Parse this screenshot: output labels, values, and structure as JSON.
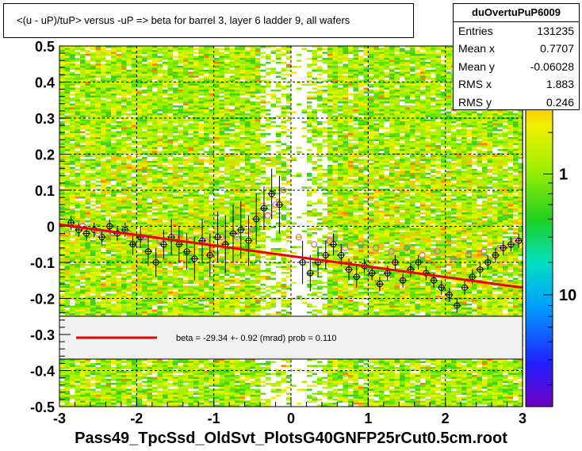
{
  "title": "<(u - uP)/tuP> versus  -uP => beta for barrel 3, layer 6 ladder 9, all wafers",
  "stats": {
    "name": "duOvertuPuP6009",
    "rows": [
      {
        "key": "Entries",
        "value": "131235"
      },
      {
        "key": "Mean x",
        "value": "0.7707"
      },
      {
        "key": "Mean y",
        "value": "-0.06028"
      },
      {
        "key": "RMS x",
        "value": "1.883"
      },
      {
        "key": "RMS y",
        "value": "0.246"
      }
    ]
  },
  "x_axis_title": "Pass49_TpcSsd_OldSvt_PlotsG40GNFP25rCut0.5cm.root",
  "fit_legend": "beta =  -29.34 +-  0.92 (mrad) prob = 0.110",
  "colors": {
    "fit_line": "#ee0000",
    "profile_black": "#000000",
    "profile_magenta": "#dd44dd",
    "legend_fill": "#f0f0f0"
  },
  "chart_data": {
    "type": "heatmap",
    "xlim": [
      -3,
      3
    ],
    "ylim": [
      -0.5,
      0.5
    ],
    "x_ticks": [
      -3,
      -2,
      -1,
      0,
      1,
      2,
      3
    ],
    "y_ticks": [
      -0.5,
      -0.4,
      -0.3,
      -0.2,
      -0.1,
      0,
      0.1,
      0.2,
      0.3,
      0.4,
      0.5
    ],
    "y_tick_labels": [
      "-0.5",
      "-0.4",
      "-0.3",
      "-0.2",
      "-0.1",
      "0",
      "0.1",
      "0.2",
      "0.3",
      "0.4",
      "0.5"
    ],
    "x_tick_labels": [
      "-3",
      "-2",
      "-1",
      "0",
      "1",
      "2",
      "3"
    ],
    "z_tick_labels": [
      "1",
      "10"
    ],
    "z_scale": "log",
    "grid": true,
    "fit_line": {
      "x": [
        -3,
        3
      ],
      "y": [
        0.005,
        -0.17
      ]
    },
    "series": [
      {
        "marker": "open-circle-black",
        "x": [
          -2.85,
          -2.75,
          -2.65,
          -2.55,
          -2.45,
          -2.35,
          -2.25,
          -2.15,
          -2.05,
          -1.95,
          -1.85,
          -1.75,
          -1.65,
          -1.55,
          -1.45,
          -1.35,
          -1.25,
          -1.15,
          -1.05,
          -0.95,
          -0.85,
          -0.75,
          -0.65,
          -0.55,
          -0.45,
          -0.35,
          -0.25,
          -0.15,
          0.15,
          0.25,
          0.35,
          0.45,
          0.55,
          0.65,
          0.75,
          0.85,
          0.95,
          1.05,
          1.15,
          1.25,
          1.35,
          1.45,
          1.55,
          1.65,
          1.75,
          1.85,
          1.95,
          2.05,
          2.15,
          2.25,
          2.35,
          2.45,
          2.55,
          2.65,
          2.75,
          2.85,
          2.95
        ],
        "y": [
          0.01,
          -0.01,
          -0.02,
          -0.01,
          -0.03,
          0.0,
          -0.02,
          -0.01,
          -0.05,
          -0.03,
          -0.07,
          -0.1,
          -0.05,
          -0.03,
          -0.05,
          -0.07,
          -0.09,
          -0.04,
          -0.08,
          -0.03,
          -0.05,
          -0.02,
          -0.01,
          -0.04,
          0.02,
          0.05,
          0.09,
          0.06,
          -0.1,
          -0.13,
          -0.1,
          -0.08,
          -0.05,
          -0.08,
          -0.12,
          -0.14,
          -0.11,
          -0.13,
          -0.16,
          -0.13,
          -0.1,
          -0.15,
          -0.12,
          -0.1,
          -0.13,
          -0.15,
          -0.17,
          -0.19,
          -0.22,
          -0.17,
          -0.14,
          -0.12,
          -0.1,
          -0.08,
          -0.06,
          -0.05,
          -0.04
        ],
        "err": [
          0.02,
          0.02,
          0.02,
          0.02,
          0.02,
          0.02,
          0.02,
          0.02,
          0.03,
          0.03,
          0.04,
          0.04,
          0.04,
          0.05,
          0.05,
          0.05,
          0.06,
          0.06,
          0.06,
          0.07,
          0.08,
          0.08,
          0.08,
          0.07,
          0.07,
          0.06,
          0.07,
          0.08,
          0.06,
          0.05,
          0.04,
          0.04,
          0.03,
          0.03,
          0.03,
          0.03,
          0.02,
          0.02,
          0.02,
          0.02,
          0.02,
          0.02,
          0.02,
          0.02,
          0.02,
          0.02,
          0.02,
          0.02,
          0.02,
          0.02,
          0.02,
          0.02,
          0.02,
          0.02,
          0.02,
          0.02,
          0.02
        ]
      },
      {
        "marker": "open-circle-magenta",
        "x": [
          -2.9,
          -2.7,
          -2.5,
          -2.3,
          -2.1,
          -1.9,
          -1.7,
          -1.5,
          -1.3,
          -1.1,
          -0.9,
          -0.7,
          -0.5,
          -0.3,
          -0.2,
          -0.1,
          0.1,
          0.3,
          0.5,
          0.7,
          0.9,
          1.1,
          1.3,
          1.5,
          1.7,
          1.9,
          2.1,
          2.3,
          2.5,
          2.7,
          2.9
        ],
        "y": [
          -0.02,
          0.0,
          -0.02,
          -0.02,
          -0.02,
          -0.03,
          -0.04,
          -0.03,
          -0.04,
          -0.04,
          -0.03,
          -0.03,
          -0.01,
          0.03,
          0.06,
          0.1,
          -0.03,
          -0.05,
          -0.04,
          -0.06,
          -0.05,
          -0.06,
          -0.07,
          -0.06,
          -0.08,
          -0.07,
          -0.09,
          -0.08,
          -0.07,
          -0.06,
          -0.04
        ]
      }
    ]
  }
}
